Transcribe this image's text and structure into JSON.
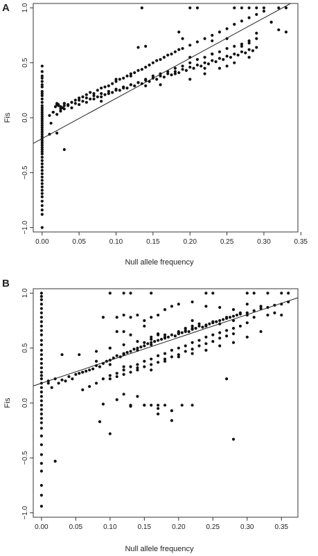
{
  "chart_data": [
    {
      "panel": "A",
      "type": "scatter",
      "title": "",
      "xlabel": "Null allele frequency",
      "ylabel": "Fis",
      "xlim": [
        -0.012,
        0.346
      ],
      "ylim": [
        -1.04,
        1.04
      ],
      "x_ticks": [
        0.0,
        0.05,
        0.1,
        0.15,
        0.2,
        0.25,
        0.3,
        0.35
      ],
      "x_tick_labels": [
        "0.00",
        "0.05",
        "0.10",
        "0.15",
        "0.20",
        "0.25",
        "0.30",
        "0.35"
      ],
      "y_ticks": [
        -1.0,
        -0.5,
        0.0,
        0.5,
        1.0
      ],
      "y_tick_labels": [
        "−1.0",
        "−0.5",
        "0.0",
        "0.5",
        "1.0"
      ],
      "grid": false,
      "regression_line": {
        "intercept": -0.19,
        "slope": 3.66
      },
      "points": {
        "x": [
          0,
          0,
          0,
          0,
          0,
          0,
          0,
          0,
          0,
          0,
          0,
          0,
          0,
          0,
          0,
          0,
          0,
          0,
          0,
          0,
          0,
          0,
          0,
          0,
          0,
          0,
          0,
          0,
          0,
          0,
          0,
          0,
          0,
          0,
          0,
          0,
          0,
          0,
          0,
          0,
          0,
          0,
          0,
          0,
          0,
          0,
          0,
          0,
          0,
          0,
          0,
          0,
          0,
          0.01,
          0.012,
          0.015,
          0.018,
          0.02,
          0.022,
          0.025,
          0.028,
          0.03,
          0.01,
          0.015,
          0.02,
          0.025,
          0.03,
          0.035,
          0.04,
          0.045,
          0.05,
          0.055,
          0.06,
          0.065,
          0.07,
          0.075,
          0.08,
          0.085,
          0.09,
          0.095,
          0.1,
          0.105,
          0.11,
          0.115,
          0.12,
          0.125,
          0.13,
          0.135,
          0.14,
          0.145,
          0.15,
          0.155,
          0.16,
          0.165,
          0.17,
          0.175,
          0.18,
          0.185,
          0.19,
          0.2,
          0.21,
          0.22,
          0.23,
          0.24,
          0.25,
          0.26,
          0.27,
          0.28,
          0.29,
          0.3,
          0.04,
          0.05,
          0.06,
          0.07,
          0.08,
          0.09,
          0.1,
          0.11,
          0.12,
          0.13,
          0.14,
          0.15,
          0.16,
          0.17,
          0.18,
          0.19,
          0.2,
          0.21,
          0.22,
          0.23,
          0.24,
          0.25,
          0.26,
          0.27,
          0.28,
          0.29,
          0.02,
          0.025,
          0.03,
          0.035,
          0.04,
          0.045,
          0.05,
          0.055,
          0.06,
          0.065,
          0.07,
          0.075,
          0.08,
          0.085,
          0.09,
          0.095,
          0.1,
          0.105,
          0.11,
          0.115,
          0.12,
          0.125,
          0.13,
          0.135,
          0.14,
          0.145,
          0.15,
          0.155,
          0.16,
          0.165,
          0.17,
          0.175,
          0.18,
          0.185,
          0.19,
          0.195,
          0.2,
          0.205,
          0.21,
          0.215,
          0.22,
          0.225,
          0.23,
          0.235,
          0.24,
          0.245,
          0.25,
          0.255,
          0.26,
          0.265,
          0.27,
          0.275,
          0.28,
          0.285,
          0.29,
          0.08,
          0.1,
          0.12,
          0.14,
          0.16,
          0.18,
          0.2,
          0.22,
          0.24,
          0.26,
          0.28,
          0.13,
          0.14,
          0.185,
          0.19,
          0.2,
          0.22,
          0.23,
          0.25,
          0.27,
          0.29,
          0.135,
          0.2,
          0.21,
          0.26,
          0.27,
          0.28,
          0.29,
          0.3,
          0.31,
          0.32,
          0.33,
          0.23,
          0.25,
          0.28,
          0.31,
          0.32,
          0.33,
          0.03,
          0.025,
          0.022,
          0.03,
          0.02
        ],
        "y": [
          0.47,
          0.42,
          0.38,
          0.33,
          0.28,
          0.24,
          0.2,
          0.17,
          0.14,
          0.11,
          0.09,
          0.07,
          0.05,
          0.03,
          0.01,
          -0.01,
          -0.03,
          -0.05,
          -0.07,
          -0.09,
          -0.11,
          -0.13,
          -0.15,
          -0.17,
          -0.19,
          -0.21,
          -0.23,
          -0.25,
          -0.27,
          -0.29,
          -0.31,
          -0.33,
          -0.36,
          -0.39,
          -0.42,
          -0.45,
          -0.48,
          -0.51,
          -0.54,
          -0.57,
          -0.6,
          -0.63,
          -0.66,
          -0.69,
          -0.72,
          -0.76,
          -0.8,
          -0.84,
          -0.88,
          -1.0,
          0.36,
          0.22,
          0.3,
          -0.15,
          -0.05,
          0.05,
          0.1,
          0.13,
          0.12,
          0.08,
          0.09,
          0.11,
          0.02,
          0.05,
          0.03,
          0.06,
          0.08,
          0.12,
          0.14,
          0.16,
          0.18,
          0.19,
          0.21,
          0.23,
          0.22,
          0.25,
          0.27,
          0.28,
          0.29,
          0.31,
          0.33,
          0.35,
          0.36,
          0.38,
          0.4,
          0.41,
          0.43,
          0.44,
          0.46,
          0.48,
          0.5,
          0.52,
          0.53,
          0.55,
          0.57,
          0.58,
          0.6,
          0.62,
          0.63,
          0.66,
          0.69,
          0.72,
          0.75,
          0.78,
          0.81,
          0.85,
          0.88,
          0.91,
          0.94,
          0.97,
          0.09,
          0.12,
          0.14,
          0.17,
          0.19,
          0.22,
          0.25,
          0.27,
          0.3,
          0.32,
          0.35,
          0.38,
          0.4,
          0.42,
          0.45,
          0.47,
          0.5,
          0.53,
          0.55,
          0.58,
          0.6,
          0.63,
          0.65,
          0.67,
          0.7,
          0.72,
          0.12,
          0.1,
          0.13,
          0.11,
          0.14,
          0.13,
          0.16,
          0.15,
          0.18,
          0.17,
          0.2,
          0.19,
          0.22,
          0.21,
          0.24,
          0.23,
          0.26,
          0.25,
          0.28,
          0.27,
          0.3,
          0.29,
          0.32,
          0.31,
          0.34,
          0.33,
          0.36,
          0.35,
          0.38,
          0.37,
          0.4,
          0.39,
          0.42,
          0.41,
          0.44,
          0.43,
          0.46,
          0.45,
          0.48,
          0.47,
          0.5,
          0.49,
          0.52,
          0.51,
          0.54,
          0.53,
          0.56,
          0.55,
          0.58,
          0.57,
          0.6,
          0.59,
          0.62,
          0.61,
          0.64,
          0.15,
          0.35,
          0.38,
          0.29,
          0.3,
          0.4,
          0.35,
          0.4,
          0.45,
          0.5,
          0.55,
          0.64,
          0.65,
          0.78,
          0.72,
          0.55,
          0.45,
          0.58,
          0.47,
          0.65,
          0.77,
          1.0,
          1.0,
          1.0,
          1.0,
          1.0,
          1.0,
          1.0,
          1.0,
          0.87,
          1.0,
          1.0,
          0.7,
          0.72,
          0.68,
          0.87,
          0.8,
          0.78,
          0.13,
          0.1,
          0.11,
          -0.29,
          -0.14
        ]
      }
    },
    {
      "panel": "B",
      "type": "scatter",
      "title": "",
      "xlabel": "Null allele frequency",
      "ylabel": "Fis",
      "xlim": [
        -0.012,
        0.374
      ],
      "ylim": [
        -1.04,
        1.04
      ],
      "x_ticks": [
        0.0,
        0.05,
        0.1,
        0.15,
        0.2,
        0.25,
        0.3,
        0.35
      ],
      "x_tick_labels": [
        "0.00",
        "0.05",
        "0.10",
        "0.15",
        "0.20",
        "0.25",
        "0.30",
        "0.35"
      ],
      "y_ticks": [
        -1.0,
        -0.5,
        0.0,
        0.5,
        1.0
      ],
      "y_tick_labels": [
        "−1.0",
        "−0.5",
        "0.0",
        "0.5",
        "1.0"
      ],
      "grid": false,
      "regression_line": {
        "intercept": 0.18,
        "slope": 2.08
      },
      "points": {
        "x": [
          0,
          0,
          0,
          0,
          0,
          0,
          0,
          0,
          0,
          0,
          0,
          0,
          0,
          0,
          0,
          0,
          0,
          0,
          0,
          0,
          0,
          0,
          0,
          0,
          0,
          0,
          0,
          0,
          0,
          0,
          0,
          0,
          0,
          0,
          0,
          0,
          0,
          0,
          0,
          0,
          0.01,
          0.01,
          0.015,
          0.02,
          0.025,
          0.03,
          0.035,
          0.04,
          0.045,
          0.05,
          0.055,
          0.06,
          0.065,
          0.07,
          0.075,
          0.08,
          0.085,
          0.09,
          0.095,
          0.1,
          0.105,
          0.11,
          0.115,
          0.12,
          0.125,
          0.13,
          0.135,
          0.14,
          0.145,
          0.15,
          0.155,
          0.16,
          0.165,
          0.17,
          0.175,
          0.18,
          0.185,
          0.19,
          0.195,
          0.2,
          0.205,
          0.21,
          0.215,
          0.22,
          0.225,
          0.23,
          0.235,
          0.24,
          0.245,
          0.25,
          0.255,
          0.26,
          0.265,
          0.27,
          0.275,
          0.28,
          0.285,
          0.29,
          0.3,
          0.31,
          0.32,
          0.33,
          0.34,
          0.35,
          0.36,
          0.06,
          0.07,
          0.08,
          0.09,
          0.1,
          0.11,
          0.12,
          0.13,
          0.14,
          0.15,
          0.16,
          0.17,
          0.18,
          0.19,
          0.2,
          0.21,
          0.22,
          0.23,
          0.24,
          0.25,
          0.26,
          0.27,
          0.28,
          0.29,
          0.3,
          0.1,
          0.11,
          0.12,
          0.13,
          0.14,
          0.15,
          0.16,
          0.17,
          0.18,
          0.19,
          0.2,
          0.21,
          0.22,
          0.23,
          0.24,
          0.25,
          0.26,
          0.27,
          0.28,
          0.08,
          0.1,
          0.12,
          0.14,
          0.16,
          0.18,
          0.2,
          0.22,
          0.24,
          0.26,
          0.28,
          0.3,
          0.1,
          0.12,
          0.13,
          0.16,
          0.24,
          0.25,
          0.3,
          0.31,
          0.33,
          0.35,
          0.36,
          0.09,
          0.11,
          0.12,
          0.13,
          0.14,
          0.15,
          0.16,
          0.17,
          0.18,
          0.19,
          0.2,
          0.22,
          0.24,
          0.26,
          0.28,
          0.3,
          0.32,
          0.11,
          0.12,
          0.13,
          0.15,
          0.16,
          0.17,
          0.18,
          0.2,
          0.21,
          0.22,
          0.23,
          0.25,
          0.27,
          0.29,
          0.31,
          0.33,
          0.34,
          0.35,
          0.1,
          0.12,
          0.14,
          0.16,
          0.18,
          0.2,
          0.22,
          0.24,
          0.26,
          0.28,
          0.3,
          0.32,
          0.08,
          0.1,
          0.12,
          0.14,
          0.15,
          0.16,
          0.17,
          0.2,
          0.21,
          0.22,
          0.09,
          0.13,
          0.15,
          0.17,
          0.19,
          0.27,
          0.1,
          0.28,
          0.02,
          0.03,
          0.055,
          0.085,
          0.12,
          0.15,
          0.17
        ],
        "y": [
          1.0,
          0.97,
          0.94,
          0.9,
          0.86,
          0.82,
          0.78,
          0.74,
          0.7,
          0.66,
          0.62,
          0.57,
          0.53,
          0.48,
          0.44,
          0.4,
          0.36,
          0.32,
          0.28,
          0.25,
          0.22,
          0.18,
          0.14,
          0.1,
          0.06,
          0.02,
          -0.02,
          -0.06,
          -0.1,
          -0.14,
          -0.18,
          -0.23,
          -0.3,
          -0.38,
          -0.47,
          -0.55,
          -0.62,
          -0.75,
          -0.84,
          -0.94,
          0.2,
          0.18,
          0.14,
          0.22,
          0.18,
          0.21,
          0.2,
          0.24,
          0.22,
          0.26,
          0.27,
          0.28,
          0.29,
          0.3,
          0.31,
          0.34,
          0.33,
          0.36,
          0.38,
          0.39,
          0.41,
          0.43,
          0.42,
          0.44,
          0.46,
          0.47,
          0.49,
          0.48,
          0.51,
          0.52,
          0.54,
          0.53,
          0.56,
          0.57,
          0.58,
          0.59,
          0.6,
          0.62,
          0.61,
          0.63,
          0.64,
          0.66,
          0.65,
          0.67,
          0.68,
          0.7,
          0.69,
          0.71,
          0.72,
          0.73,
          0.74,
          0.75,
          0.76,
          0.77,
          0.78,
          0.79,
          0.8,
          0.81,
          0.82,
          0.84,
          0.86,
          0.87,
          0.89,
          0.9,
          0.92,
          0.12,
          0.15,
          0.18,
          0.22,
          0.25,
          0.27,
          0.3,
          0.33,
          0.35,
          0.38,
          0.4,
          0.43,
          0.45,
          0.48,
          0.5,
          0.52,
          0.55,
          0.57,
          0.6,
          0.62,
          0.64,
          0.66,
          0.68,
          0.7,
          0.73,
          0.22,
          0.24,
          0.26,
          0.28,
          0.3,
          0.33,
          0.35,
          0.37,
          0.4,
          0.42,
          0.44,
          0.47,
          0.49,
          0.52,
          0.54,
          0.56,
          0.59,
          0.61,
          0.63,
          0.47,
          0.5,
          0.53,
          0.56,
          0.58,
          0.62,
          0.65,
          0.68,
          0.7,
          0.72,
          0.75,
          0.8,
          1.0,
          1.0,
          1.0,
          1.0,
          1.0,
          1.0,
          1.0,
          1.0,
          1.0,
          1.0,
          1.0,
          0.78,
          0.78,
          0.8,
          0.78,
          0.8,
          0.75,
          0.78,
          0.8,
          0.85,
          0.88,
          0.9,
          0.92,
          0.88,
          0.87,
          0.85,
          0.9,
          0.88,
          0.65,
          0.65,
          0.62,
          0.55,
          0.55,
          0.62,
          0.6,
          0.64,
          0.68,
          0.7,
          0.72,
          0.74,
          0.78,
          0.82,
          0.78,
          0.8,
          0.82,
          0.8,
          0.35,
          0.33,
          0.32,
          0.3,
          0.38,
          0.42,
          0.45,
          0.48,
          0.52,
          0.55,
          0.6,
          0.65,
          0.38,
          0.5,
          0.45,
          0.5,
          0.7,
          0.6,
          0.63,
          0.63,
          0.65,
          0.75,
          -0.01,
          -0.02,
          -0.02,
          -0.02,
          -0.07,
          0.22,
          -0.28,
          -0.33,
          -0.53,
          0.44,
          0.44,
          -0.17,
          0.08,
          -0.02,
          -0.1
        ],
        "extra": [
          [
            0.205,
            -0.02
          ],
          [
            0.22,
            -0.02
          ],
          [
            0.19,
            -0.16
          ],
          [
            0.13,
            -0.03
          ],
          [
            0.14,
            0.06
          ],
          [
            0.17,
            -0.05
          ],
          [
            0.18,
            -0.02
          ],
          [
            0.16,
            -0.02
          ],
          [
            0.11,
            0.03
          ],
          [
            0.06,
            0.28
          ]
        ]
      }
    }
  ]
}
